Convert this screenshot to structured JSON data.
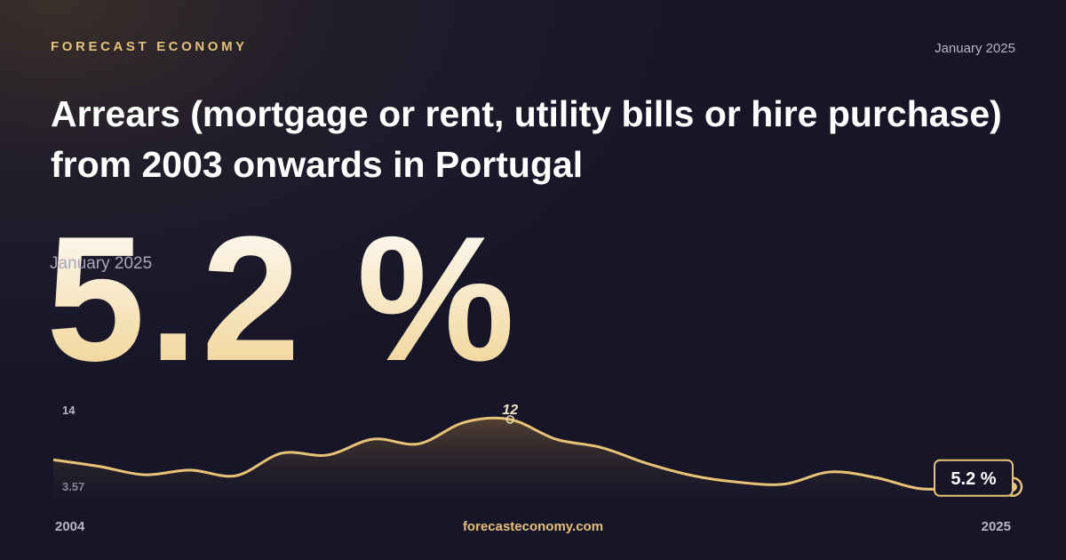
{
  "brand": "FORECAST ECONOMY",
  "date": "January 2025",
  "footer": "forecasteconomy.com",
  "chart_data": {
    "type": "line",
    "title": "Arrears (mortgage or rent, utility bills or hire purchase) from 2003 onwards in Portugal",
    "headline": "5.2 %",
    "headline_date": "January 2025",
    "x": [
      2004,
      2005,
      2006,
      2007,
      2008,
      2009,
      2010,
      2011,
      2012,
      2013,
      2014,
      2015,
      2016,
      2017,
      2018,
      2019,
      2020,
      2021,
      2022,
      2023,
      2024,
      2025
    ],
    "values": [
      8.1,
      7.4,
      6.5,
      7.0,
      6.4,
      8.8,
      8.6,
      10.3,
      9.8,
      12.1,
      12.4,
      10.3,
      9.4,
      7.7,
      6.4,
      5.7,
      5.5,
      6.8,
      6.2,
      5.0,
      5.2,
      5.2
    ],
    "value_labels": [
      null,
      null,
      null,
      null,
      null,
      null,
      null,
      null,
      null,
      null,
      "12",
      null,
      null,
      null,
      null,
      null,
      null,
      null,
      null,
      null,
      null,
      "5.2 %"
    ],
    "color": "#e8c377",
    "xlim": [
      2004,
      2025
    ],
    "xticks": [
      2004,
      2025
    ],
    "ylim": [
      3.57,
      14
    ],
    "yticks": [
      3.57,
      14
    ]
  }
}
